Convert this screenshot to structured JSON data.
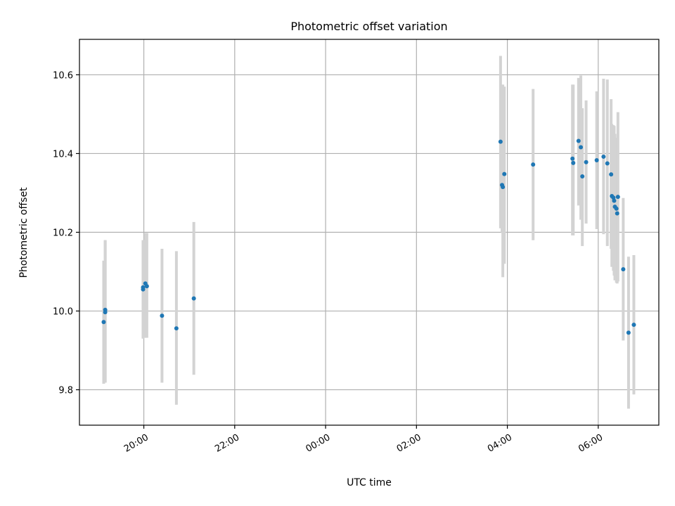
{
  "chart_data": {
    "type": "scatter",
    "title": "Photometric offset variation",
    "xlabel": "UTC time",
    "ylabel": "Photometric offset",
    "x_unit": "UTC time (day 1 = evening, day 2 = morning)",
    "xlim": [
      "1 18:35",
      "2 07:20"
    ],
    "ylim": [
      9.71,
      10.69
    ],
    "x_ticks": [
      {
        "t": "1 20:00",
        "label": "20:00"
      },
      {
        "t": "1 22:00",
        "label": "22:00"
      },
      {
        "t": "2 00:00",
        "label": "00:00"
      },
      {
        "t": "2 02:00",
        "label": "02:00"
      },
      {
        "t": "2 04:00",
        "label": "04:00"
      },
      {
        "t": "2 06:00",
        "label": "06:00"
      }
    ],
    "y_ticks": [
      {
        "v": 9.8,
        "label": "9.8"
      },
      {
        "v": 10.0,
        "label": "10.0"
      },
      {
        "v": 10.2,
        "label": "10.2"
      },
      {
        "v": 10.4,
        "label": "10.4"
      },
      {
        "v": 10.6,
        "label": "10.6"
      }
    ],
    "grid": true,
    "point_color": "#1f77b4",
    "errorbar_color": "#d3d3d3",
    "points": [
      {
        "t": "1 19:07",
        "y": 9.972,
        "lo": 9.815,
        "hi": 10.128
      },
      {
        "t": "1 19:09",
        "y": 10.003,
        "lo": 9.818,
        "hi": 10.18
      },
      {
        "t": "1 19:09",
        "y": 9.997,
        "lo": 9.818,
        "hi": 10.18
      },
      {
        "t": "1 19:59",
        "y": 10.06,
        "lo": 9.93,
        "hi": 10.18
      },
      {
        "t": "1 19:59",
        "y": 10.055,
        "lo": 9.93,
        "hi": 10.18
      },
      {
        "t": "1 20:02",
        "y": 10.07,
        "lo": 9.932,
        "hi": 10.198
      },
      {
        "t": "1 20:04",
        "y": 10.063,
        "lo": 9.932,
        "hi": 10.198
      },
      {
        "t": "1 20:24",
        "y": 9.988,
        "lo": 9.818,
        "hi": 10.158
      },
      {
        "t": "1 20:43",
        "y": 9.956,
        "lo": 9.762,
        "hi": 10.152
      },
      {
        "t": "1 21:06",
        "y": 10.032,
        "lo": 9.838,
        "hi": 10.226
      },
      {
        "t": "2 03:51",
        "y": 10.43,
        "lo": 10.21,
        "hi": 10.648
      },
      {
        "t": "2 03:53",
        "y": 10.32,
        "lo": 10.2,
        "hi": 10.575
      },
      {
        "t": "2 03:54",
        "y": 10.315,
        "lo": 10.086,
        "hi": 10.575
      },
      {
        "t": "2 03:56",
        "y": 10.348,
        "lo": 10.12,
        "hi": 10.57
      },
      {
        "t": "2 04:34",
        "y": 10.372,
        "lo": 10.18,
        "hi": 10.564
      },
      {
        "t": "2 05:26",
        "y": 10.387,
        "lo": 10.192,
        "hi": 10.575
      },
      {
        "t": "2 05:27",
        "y": 10.376,
        "lo": 10.192,
        "hi": 10.575
      },
      {
        "t": "2 05:34",
        "y": 10.432,
        "lo": 10.268,
        "hi": 10.592
      },
      {
        "t": "2 05:37",
        "y": 10.416,
        "lo": 10.232,
        "hi": 10.598
      },
      {
        "t": "2 05:39",
        "y": 10.342,
        "lo": 10.165,
        "hi": 10.515
      },
      {
        "t": "2 05:44",
        "y": 10.378,
        "lo": 10.222,
        "hi": 10.535
      },
      {
        "t": "2 05:58",
        "y": 10.383,
        "lo": 10.208,
        "hi": 10.558
      },
      {
        "t": "2 06:07",
        "y": 10.392,
        "lo": 10.195,
        "hi": 10.59
      },
      {
        "t": "2 06:12",
        "y": 10.375,
        "lo": 10.165,
        "hi": 10.588
      },
      {
        "t": "2 06:17",
        "y": 10.347,
        "lo": 10.158,
        "hi": 10.538
      },
      {
        "t": "2 06:18",
        "y": 10.292,
        "lo": 10.112,
        "hi": 10.475
      },
      {
        "t": "2 06:20",
        "y": 10.288,
        "lo": 10.102,
        "hi": 10.472
      },
      {
        "t": "2 06:21",
        "y": 10.28,
        "lo": 10.09,
        "hi": 10.47
      },
      {
        "t": "2 06:22",
        "y": 10.265,
        "lo": 10.078,
        "hi": 10.45
      },
      {
        "t": "2 06:24",
        "y": 10.26,
        "lo": 10.072,
        "hi": 10.44
      },
      {
        "t": "2 06:25",
        "y": 10.248,
        "lo": 10.07,
        "hi": 10.43
      },
      {
        "t": "2 06:26",
        "y": 10.29,
        "lo": 10.075,
        "hi": 10.505
      },
      {
        "t": "2 06:33",
        "y": 10.106,
        "lo": 9.925,
        "hi": 10.287
      },
      {
        "t": "2 06:40",
        "y": 9.945,
        "lo": 9.752,
        "hi": 10.138
      },
      {
        "t": "2 06:47",
        "y": 9.965,
        "lo": 9.788,
        "hi": 10.142
      }
    ]
  }
}
